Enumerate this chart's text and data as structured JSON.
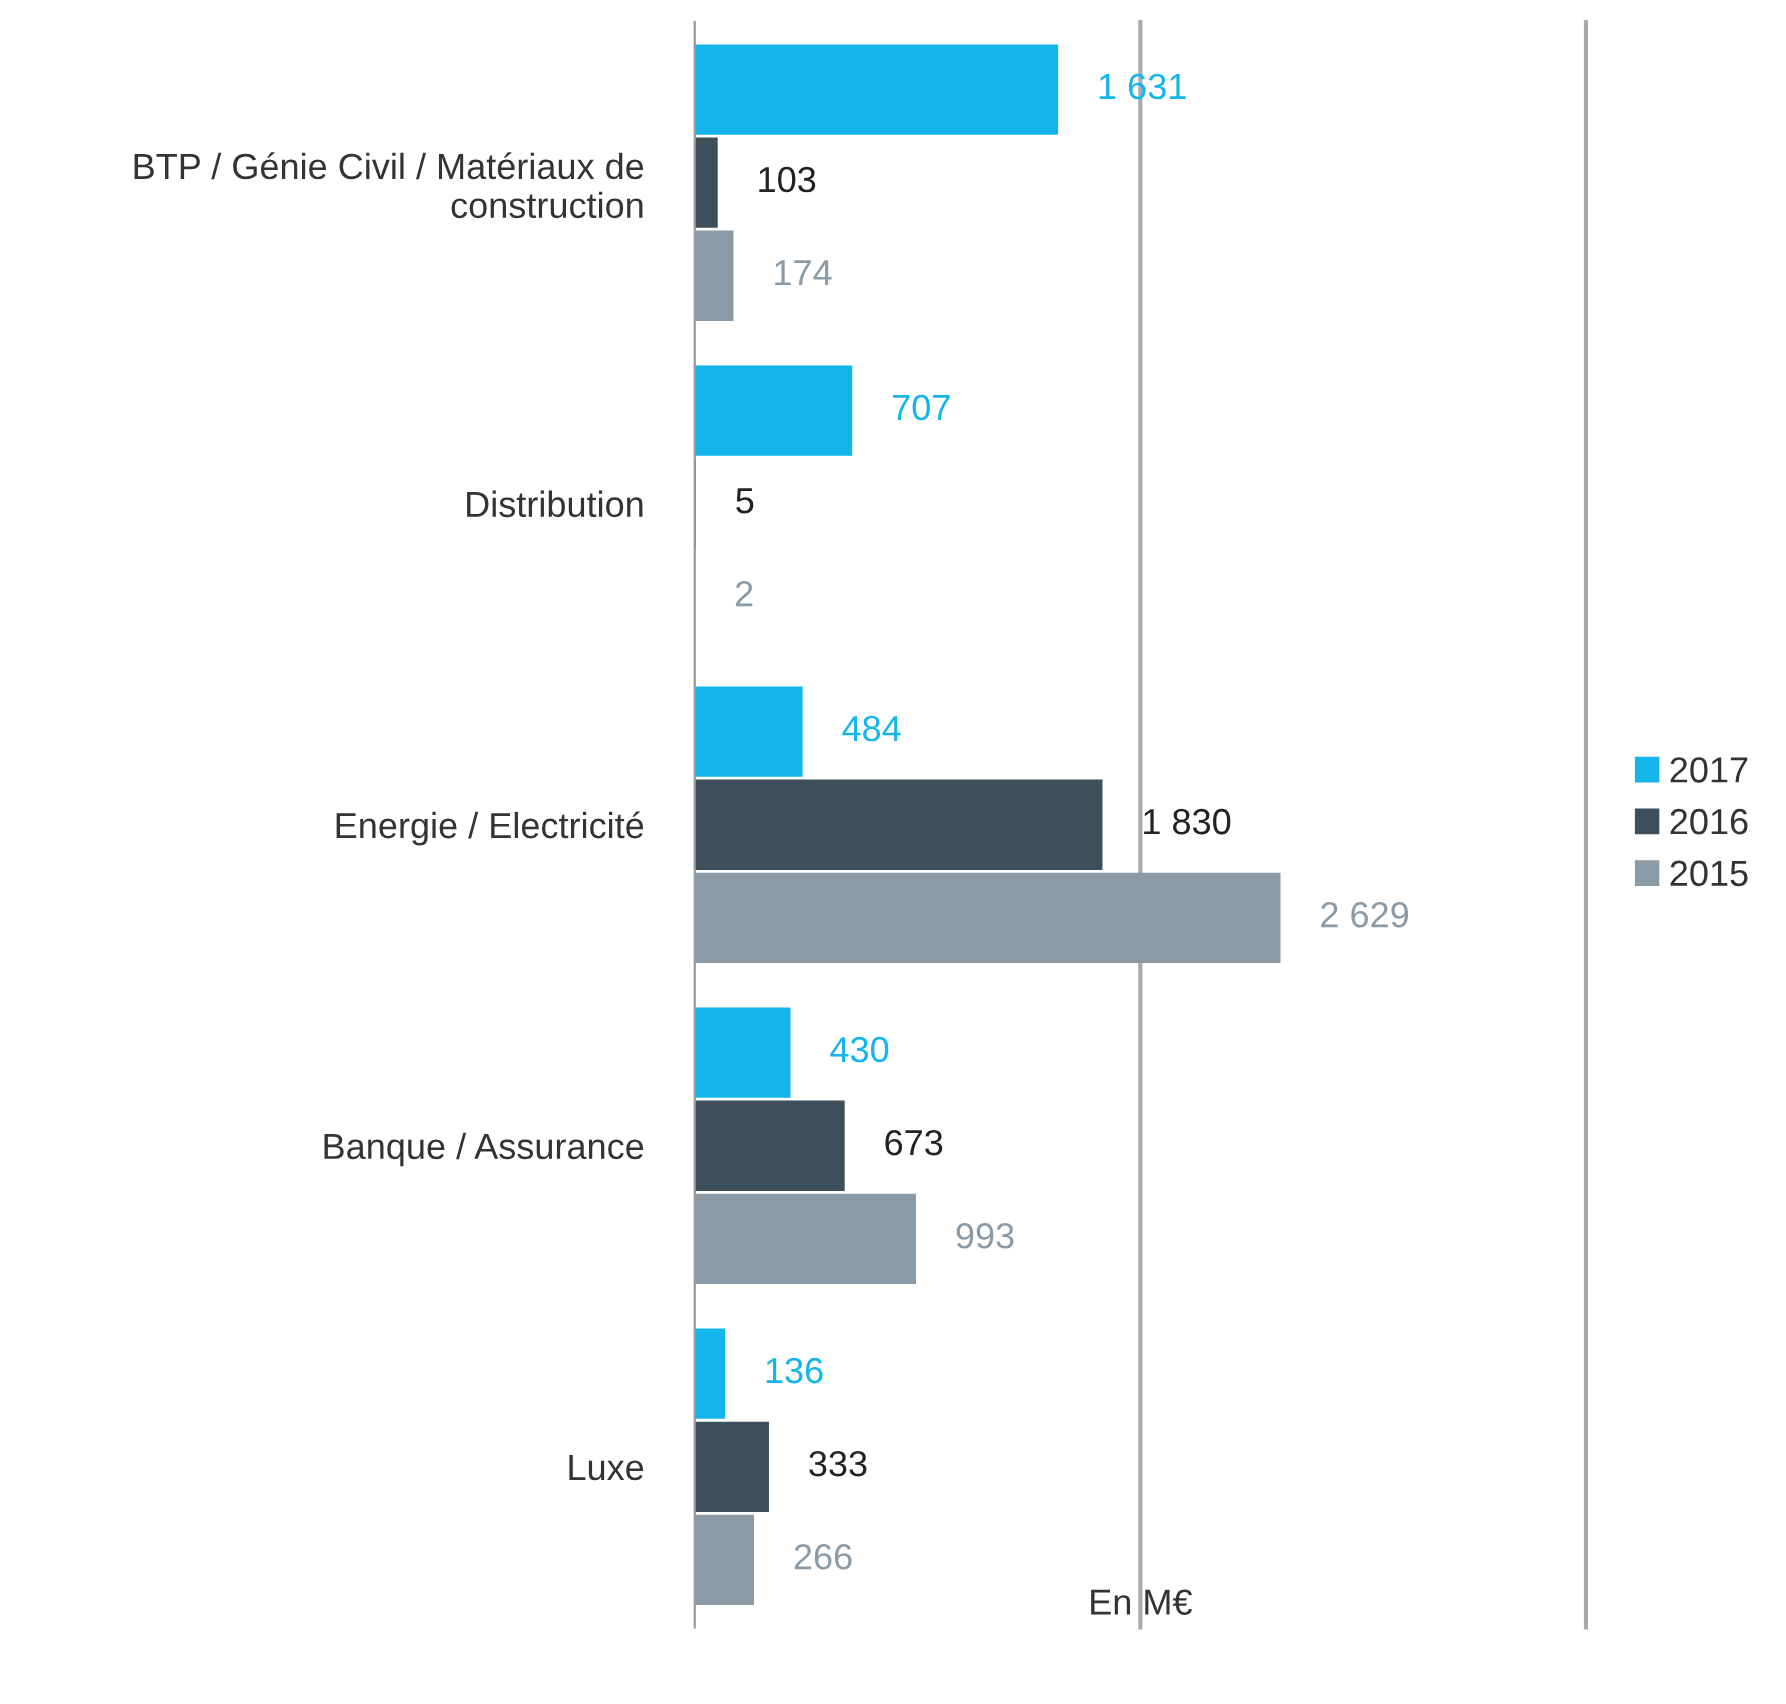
{
  "chart_data": {
    "type": "bar",
    "orientation": "horizontal",
    "xlabel": "En M€",
    "categories": [
      "BTP / Génie Civil / Matériaux de construction",
      "Distribution",
      "Energie / Electricité",
      "Banque / Assurance",
      "Luxe"
    ],
    "series": [
      {
        "name": "2017",
        "color": "#13b5ea",
        "values": [
          1631,
          707,
          484,
          430,
          136
        ],
        "value_labels": [
          "1 631",
          "707",
          "484",
          "430",
          "136"
        ]
      },
      {
        "name": "2016",
        "color": "#3e4f5c",
        "values": [
          103,
          5,
          1830,
          673,
          333
        ],
        "value_labels": [
          "103",
          "5",
          "1 830",
          "673",
          "333"
        ]
      },
      {
        "name": "2015",
        "color": "#8a9aa6",
        "values": [
          174,
          2,
          2629,
          993,
          266
        ],
        "value_labels": [
          "174",
          "2",
          "2 629",
          "993",
          "266"
        ]
      }
    ],
    "xlim": [
      0,
      4000
    ],
    "ref_lines": [
      {
        "axis": "x",
        "value": 2000,
        "color": "#aaaaaa"
      },
      {
        "axis": "x",
        "value": 4000,
        "color": "#aaaaaa"
      }
    ],
    "legend": "right"
  }
}
